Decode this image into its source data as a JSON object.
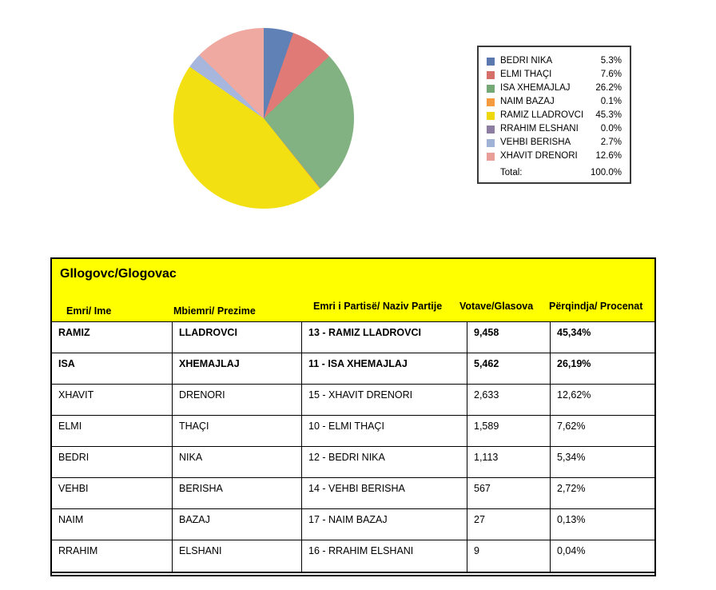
{
  "chart_data": {
    "type": "pie",
    "title": "",
    "labels": [
      "BEDRI NIKA",
      "ELMI THAÇI",
      "ISA XHEMAJLAJ",
      "NAIM BAZAJ",
      "RAMIZ LLADROVCI",
      "RRAHIM ELSHANI",
      "VEHBI BERISHA",
      "XHAVIT DRENORI"
    ],
    "values": [
      5.3,
      7.6,
      26.2,
      0.1,
      45.3,
      0.0,
      2.7,
      12.6
    ],
    "colors": [
      "#6081B6",
      "#DF7A76",
      "#82B282",
      "#F79646",
      "#F2E013",
      "#8E7CA8",
      "#A7B6DC",
      "#EFA9A1"
    ],
    "start_angle": "12 o'clock",
    "direction": "clockwise",
    "legend_position": "right",
    "total": 100.0
  },
  "legend": {
    "entries": [
      {
        "label": "BEDRI NIKA",
        "pct": "5.3%",
        "color": "#5B79AE"
      },
      {
        "label": "ELMI THAÇI",
        "pct": "7.6%",
        "color": "#D66E6A"
      },
      {
        "label": "ISA XHEMAJLAJ",
        "pct": "26.2%",
        "color": "#74A976"
      },
      {
        "label": "NAIM BAZAJ",
        "pct": "0.1%",
        "color": "#F59B3D"
      },
      {
        "label": "RAMIZ LLADROVCI",
        "pct": "45.3%",
        "color": "#EFD80A"
      },
      {
        "label": "RRAHIM ELSHANI",
        "pct": "0.0%",
        "color": "#8D7DA2"
      },
      {
        "label": "VEHBI BERISHA",
        "pct": "2.7%",
        "color": "#A0B2D5"
      },
      {
        "label": "XHAVIT DRENORI",
        "pct": "12.6%",
        "color": "#E99E97"
      }
    ],
    "total_label": "Total:",
    "total_pct": "100.0%"
  },
  "table": {
    "title": "Gllogovc/Glogovac",
    "header_bg": "#FFFF00",
    "columns": [
      "Emri/ Ime",
      "Mbiemri/ Prezime",
      "Emri i Partisë/ Naziv Partije",
      "Votave/Glasova",
      "Përqindja/ Procenat"
    ],
    "rows": [
      {
        "first": "RAMIZ",
        "last": "LLADROVCI",
        "party": "13 - RAMIZ LLADROVCI",
        "votes": "9,458",
        "pct": "45,34%",
        "bold": true
      },
      {
        "first": "ISA",
        "last": "XHEMAJLAJ",
        "party": "11 - ISA XHEMAJLAJ",
        "votes": "5,462",
        "pct": "26,19%",
        "bold": true
      },
      {
        "first": "XHAVIT",
        "last": "DRENORI",
        "party": "15 - XHAVIT DRENORI",
        "votes": "2,633",
        "pct": "12,62%",
        "bold": false
      },
      {
        "first": "ELMI",
        "last": "THAÇI",
        "party": "10 - ELMI THAÇI",
        "votes": "1,589",
        "pct": "7,62%",
        "bold": false
      },
      {
        "first": "BEDRI",
        "last": "NIKA",
        "party": "12 - BEDRI NIKA",
        "votes": "1,113",
        "pct": "5,34%",
        "bold": false
      },
      {
        "first": "VEHBI",
        "last": "BERISHA",
        "party": "14 - VEHBI BERISHA",
        "votes": "567",
        "pct": "2,72%",
        "bold": false
      },
      {
        "first": "NAIM",
        "last": "BAZAJ",
        "party": "17 - NAIM BAZAJ",
        "votes": "27",
        "pct": "0,13%",
        "bold": false
      },
      {
        "first": "RRAHIM",
        "last": "ELSHANI",
        "party": "16 - RRAHIM ELSHANI",
        "votes": "9",
        "pct": "0,04%",
        "bold": false
      }
    ]
  }
}
